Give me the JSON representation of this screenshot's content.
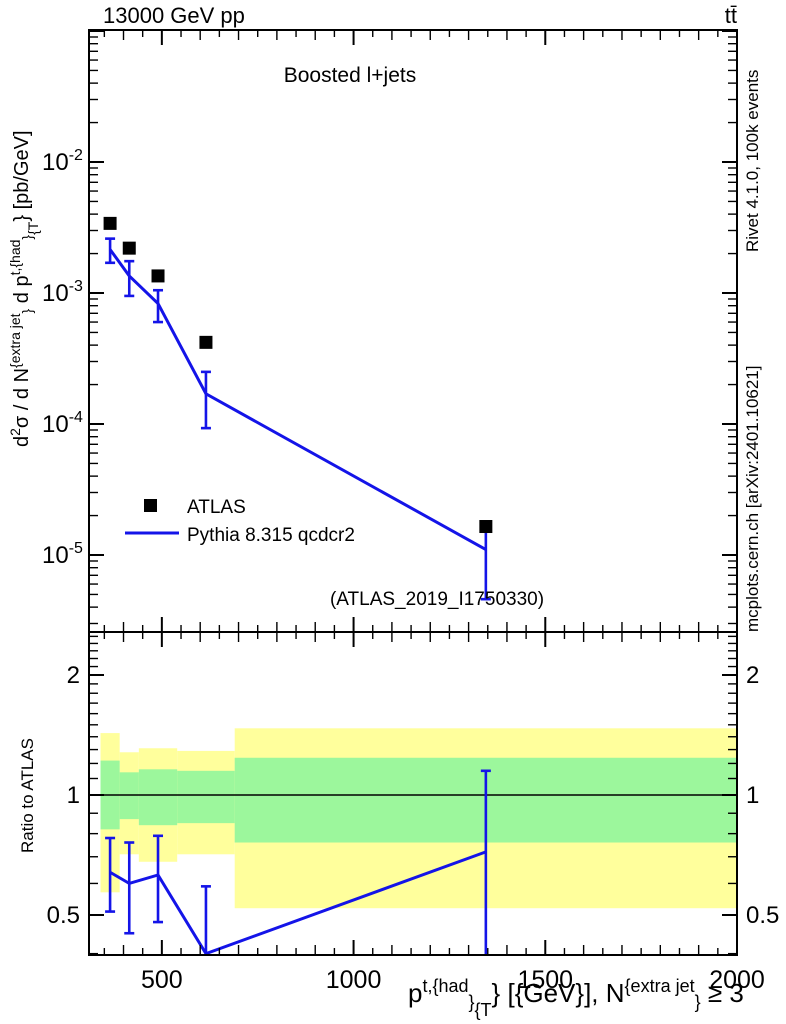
{
  "header": {
    "left_title": "13000 GeV pp",
    "right_title": "tt̄"
  },
  "panel_title": "Boosted l+jets",
  "watermark": "(ATLAS_2019_I1750330)",
  "side_notes": {
    "top": "Rivet 4.1.0,  100k events",
    "bottom": "mcplots.cern.ch [arXiv:2401.10621]"
  },
  "legend": {
    "items": [
      {
        "label": "ATLAS",
        "type": "square-marker",
        "color": "#000000"
      },
      {
        "label": "Pythia 8.315 qcdcr2",
        "type": "line",
        "color": "#1414e8"
      }
    ]
  },
  "colors": {
    "line": "#1414e8",
    "band_outer": "#ffff9c",
    "band_inner": "#9cf79c",
    "frame": "#000000",
    "gray_text": "#9b9b9b",
    "watermark": "#b5b5b5"
  },
  "axes": {
    "x": {
      "min": 310,
      "max": 2000,
      "ticks": [
        {
          "v": 500,
          "label": "500"
        },
        {
          "v": 1000,
          "label": "1000"
        },
        {
          "v": 1500,
          "label": "1500"
        },
        {
          "v": 2000,
          "label": "2000"
        }
      ],
      "minor_step": 50,
      "medium_step": 100,
      "label_segments": [
        {
          "t": "p",
          "p": "n"
        },
        {
          "t": "t,{had",
          "p": "u"
        },
        {
          "t": "}",
          "p": "d"
        },
        {
          "t": "{T",
          "p": "dd"
        },
        {
          "t": "} ",
          "p": "n"
        },
        {
          "t": "[{GeV}], N",
          "p": "n"
        },
        {
          "t": "{extra jet",
          "p": "u"
        },
        {
          "t": "}",
          "p": "d"
        },
        {
          "t": " ≥ 3",
          "p": "n"
        }
      ]
    },
    "y_main": {
      "scale": "log",
      "ticks": [
        {
          "v": 0.01,
          "base": "10",
          "exp": "-2"
        },
        {
          "v": 0.001,
          "base": "10",
          "exp": "-3"
        },
        {
          "v": 0.0001,
          "base": "10",
          "exp": "-4"
        },
        {
          "v": 1e-05,
          "base": "10",
          "exp": "-5"
        }
      ],
      "label_segments": [
        {
          "t": "d",
          "p": "n"
        },
        {
          "t": "2",
          "p": "u"
        },
        {
          "t": "σ / d N",
          "p": "n"
        },
        {
          "t": "{extra jet",
          "p": "u"
        },
        {
          "t": "}",
          "p": "d"
        },
        {
          "t": " d p",
          "p": "n"
        },
        {
          "t": "t,{had",
          "p": "u"
        },
        {
          "t": "}",
          "p": "d"
        },
        {
          "t": "{T",
          "p": "dd"
        },
        {
          "t": "} ",
          "p": "n"
        },
        {
          "t": "[pb/GeV]",
          "p": "n"
        }
      ]
    },
    "y_ratio": {
      "scale": "log",
      "axis_label": "Ratio to ATLAS",
      "ticks": [
        {
          "v": 2,
          "label": "2"
        },
        {
          "v": 1,
          "label": "1"
        },
        {
          "v": 0.5,
          "label": "0.5"
        }
      ]
    }
  },
  "chart_data": [
    {
      "type": "scatter",
      "title": "Boosted l+jets",
      "xlabel": "p_T^{t,had} [GeV], N^{extra jet} >= 3",
      "ylabel": "d2sigma / dN^{extra jet} dp_T^{t,had} [pb/GeV]",
      "xlim": [
        310,
        2000
      ],
      "ylim": [
        2.58e-06,
        0.102
      ],
      "yscale": "log",
      "legend_position": "left-middle",
      "series": [
        {
          "name": "ATLAS",
          "style": "square",
          "color": "#000000",
          "x": [
            365,
            415,
            490,
            615,
            1345
          ],
          "y": [
            0.0034,
            0.0022,
            0.00135,
            0.00042,
            1.65e-05
          ]
        },
        {
          "name": "Pythia 8.315 qcdcr2",
          "style": "line",
          "color": "#1414e8",
          "x": [
            365,
            415,
            490,
            615,
            1345
          ],
          "y": [
            0.00215,
            0.00135,
            0.00083,
            0.00017,
            1.1e-05
          ],
          "yerr_lo": [
            0.0017,
            0.00095,
            0.0006,
            9.3e-05,
            4.6e-06
          ],
          "yerr_hi": [
            0.0026,
            0.00175,
            0.00105,
            0.00025,
            1.65e-05
          ]
        }
      ]
    },
    {
      "type": "ratio",
      "ylabel": "Ratio to ATLAS",
      "ylim": [
        0.397,
        2.57
      ],
      "yscale": "log",
      "reference_line": 1,
      "bands": [
        {
          "xlo": 340,
          "xhi": 390,
          "outer": [
            0.57,
            1.43
          ],
          "inner": [
            0.82,
            1.22
          ]
        },
        {
          "xlo": 390,
          "xhi": 440,
          "outer": [
            0.71,
            1.28
          ],
          "inner": [
            0.87,
            1.14
          ]
        },
        {
          "xlo": 440,
          "xhi": 540,
          "outer": [
            0.68,
            1.31
          ],
          "inner": [
            0.84,
            1.16
          ]
        },
        {
          "xlo": 540,
          "xhi": 690,
          "outer": [
            0.71,
            1.29
          ],
          "inner": [
            0.85,
            1.15
          ]
        },
        {
          "xlo": 690,
          "xhi": 2000,
          "outer": [
            0.52,
            1.47
          ],
          "inner": [
            0.76,
            1.24
          ]
        }
      ],
      "series": [
        {
          "name": "Pythia 8.315 qcdcr2 / ATLAS",
          "style": "line",
          "color": "#1414e8",
          "x": [
            365,
            415,
            490,
            615,
            1345
          ],
          "y": [
            0.64,
            0.6,
            0.63,
            0.4,
            0.72
          ],
          "yerr_lo": [
            0.51,
            0.45,
            0.48,
            0.22,
            0.29
          ],
          "yerr_hi": [
            0.78,
            0.76,
            0.79,
            0.59,
            1.15
          ]
        }
      ]
    }
  ]
}
